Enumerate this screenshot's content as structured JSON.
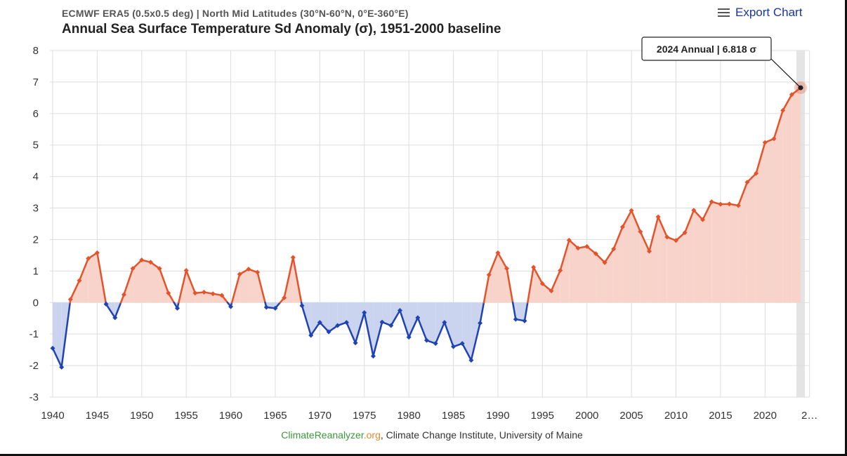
{
  "header": {
    "subtitle": "ECMWF ERA5 (0.5x0.5 deg) | North Mid Latitudes (30°N-60°N, 0°E-360°E)",
    "title": "Annual Sea Surface Temperature Sd Anomaly (σ), 1951-2000 baseline",
    "export_label": "Export Chart"
  },
  "credit": {
    "part1": "ClimateReanalyzer",
    "part2": ".org",
    "part3": ", Climate Change Institute, University of Maine"
  },
  "colors": {
    "positive_line": "#e4532a",
    "positive_fill": "#f7d3ca",
    "negative_line": "#1f43b2",
    "negative_fill": "#cbd4ee",
    "grid": "#dddddd",
    "highlight_band": "#e4e4e4"
  },
  "chart_data": {
    "type": "area",
    "title": "Annual Sea Surface Temperature Sd Anomaly (σ), 1951-2000 baseline",
    "xlabel": "",
    "ylabel": "",
    "xlim": [
      1940,
      2024
    ],
    "ylim": [
      -3,
      8
    ],
    "x_ticks": [
      "1940",
      "1945",
      "1950",
      "1955",
      "1960",
      "1965",
      "1970",
      "1975",
      "1980",
      "1985",
      "1990",
      "1995",
      "2000",
      "2005",
      "2010",
      "2015",
      "2020",
      "2…"
    ],
    "y_ticks": [
      "-3",
      "-2",
      "-1",
      "0",
      "1",
      "2",
      "3",
      "4",
      "5",
      "6",
      "7",
      "8"
    ],
    "tooltip": "2024 Annual | 6.818 σ",
    "series": [
      {
        "name": "Annual",
        "x": [
          1940,
          1941,
          1942,
          1943,
          1944,
          1945,
          1946,
          1947,
          1948,
          1949,
          1950,
          1951,
          1952,
          1953,
          1954,
          1955,
          1956,
          1957,
          1958,
          1959,
          1960,
          1961,
          1962,
          1963,
          1964,
          1965,
          1966,
          1967,
          1968,
          1969,
          1970,
          1971,
          1972,
          1973,
          1974,
          1975,
          1976,
          1977,
          1978,
          1979,
          1980,
          1981,
          1982,
          1983,
          1984,
          1985,
          1986,
          1987,
          1988,
          1989,
          1990,
          1991,
          1992,
          1993,
          1994,
          1995,
          1996,
          1997,
          1998,
          1999,
          2000,
          2001,
          2002,
          2003,
          2004,
          2005,
          2006,
          2007,
          2008,
          2009,
          2010,
          2011,
          2012,
          2013,
          2014,
          2015,
          2016,
          2017,
          2018,
          2019,
          2020,
          2021,
          2022,
          2023,
          2024
        ],
        "values": [
          -1.45,
          -2.05,
          0.1,
          0.7,
          1.4,
          1.58,
          -0.05,
          -0.48,
          0.25,
          1.08,
          1.35,
          1.28,
          1.08,
          0.3,
          -0.18,
          1.02,
          0.3,
          0.33,
          0.28,
          0.23,
          -0.13,
          0.9,
          1.06,
          0.96,
          -0.15,
          -0.18,
          0.15,
          1.43,
          -0.1,
          -1.04,
          -0.63,
          -0.93,
          -0.73,
          -0.63,
          -1.28,
          -0.32,
          -1.7,
          -0.62,
          -0.73,
          -0.25,
          -1.1,
          -0.48,
          -1.2,
          -1.3,
          -0.63,
          -1.4,
          -1.3,
          -1.83,
          -0.65,
          0.88,
          1.58,
          1.08,
          -0.53,
          -0.58,
          1.12,
          0.6,
          0.37,
          1.02,
          1.98,
          1.73,
          1.78,
          1.55,
          1.27,
          1.7,
          2.4,
          2.92,
          2.25,
          1.63,
          2.72,
          2.08,
          1.97,
          2.22,
          2.93,
          2.63,
          3.2,
          3.12,
          3.13,
          3.08,
          3.82,
          4.1,
          5.08,
          5.2,
          6.1,
          6.6,
          6.818
        ]
      }
    ]
  }
}
